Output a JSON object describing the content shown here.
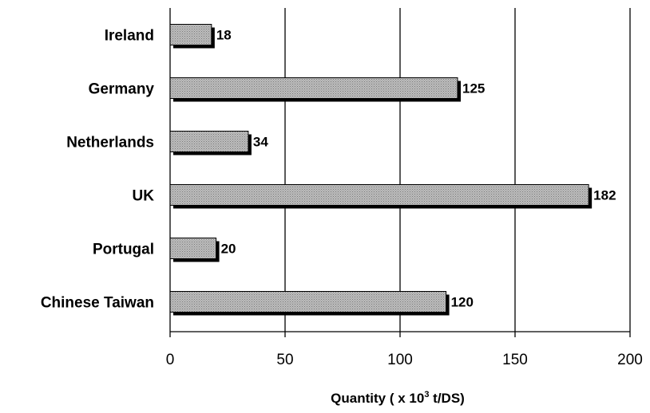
{
  "chart_data": {
    "type": "bar",
    "orientation": "horizontal",
    "categories": [
      "Ireland",
      "Germany",
      "Netherlands",
      "UK",
      "Portugal",
      "Chinese Taiwan"
    ],
    "values": [
      18,
      125,
      34,
      182,
      20,
      120
    ],
    "data_labels": [
      "18",
      "125",
      "34",
      "182",
      "20",
      "120"
    ],
    "xlabel": {
      "prefix": "Quantity ( x 10",
      "superscript": "3",
      "suffix": " t/DS)"
    },
    "xlim": [
      0,
      200
    ],
    "xticks": [
      0,
      50,
      100,
      150,
      200
    ],
    "xtick_labels": [
      "0",
      "50",
      "100",
      "150",
      "200"
    ],
    "grid": "vertical",
    "legend": "none",
    "bar_color": "#b0b0b0",
    "bar_shadow_color": "#000000"
  }
}
